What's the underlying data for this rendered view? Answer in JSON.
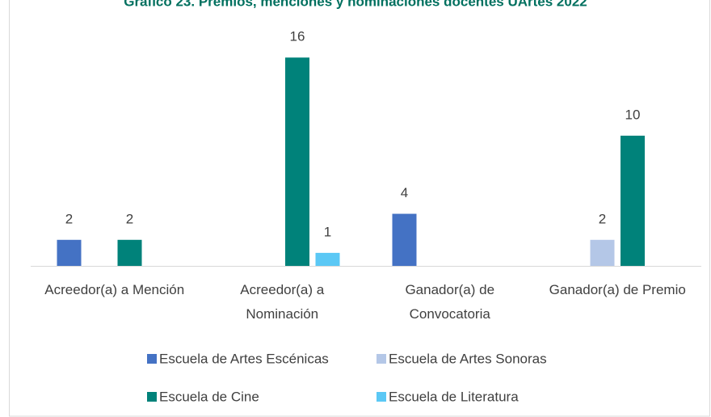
{
  "chart_data": {
    "type": "bar",
    "title": "Gráfico 23. Premios, menciones y nominaciones docentes UArtes 2022",
    "categories": [
      "Acreedor(a) a Mención",
      "Acreedor(a) a Nominación",
      "Ganador(a) de Convocatoria",
      "Ganador(a) de Premio"
    ],
    "series": [
      {
        "name": "Escuela de Artes Escénicas",
        "color": "#4472c4",
        "values": [
          2,
          null,
          4,
          null
        ]
      },
      {
        "name": "Escuela de Artes Sonoras",
        "color": "#b4c7e7",
        "values": [
          null,
          null,
          null,
          2
        ]
      },
      {
        "name": "Escuela de Cine",
        "color": "#00827a",
        "values": [
          2,
          16,
          null,
          10
        ]
      },
      {
        "name": "Escuela de Literatura",
        "color": "#5bc8f5",
        "values": [
          null,
          1,
          null,
          null
        ]
      }
    ],
    "ylim": [
      0,
      18
    ]
  }
}
